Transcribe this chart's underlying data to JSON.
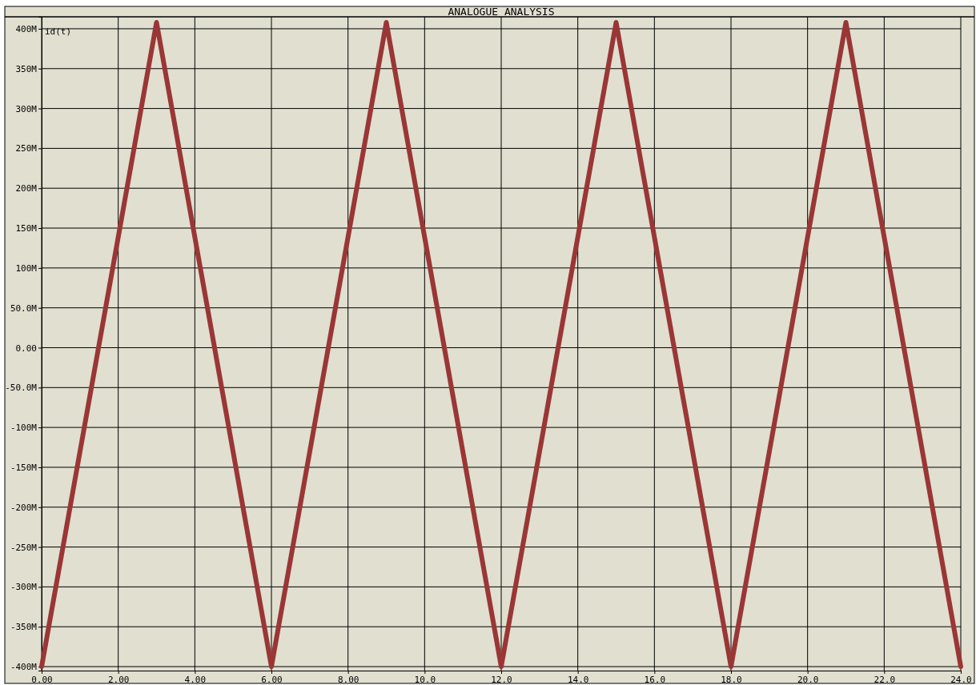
{
  "chart_data": {
    "type": "line",
    "title": "ANALOGUE ANALYSIS",
    "x": [
      0,
      3,
      6,
      9,
      12,
      15,
      18,
      21,
      24
    ],
    "series": [
      {
        "name": "id(t)",
        "color": "#9a3636",
        "values": [
          -400,
          408,
          -400,
          408,
          -400,
          408,
          -400,
          408,
          -400
        ]
      }
    ],
    "xlim": [
      0,
      24
    ],
    "xticks": [
      {
        "value": 0,
        "label": "0.00"
      },
      {
        "value": 2,
        "label": "2.00"
      },
      {
        "value": 4,
        "label": "4.00"
      },
      {
        "value": 6,
        "label": "6.00"
      },
      {
        "value": 8,
        "label": "8.00"
      },
      {
        "value": 10,
        "label": "10.0"
      },
      {
        "value": 12,
        "label": "12.0"
      },
      {
        "value": 14,
        "label": "14.0"
      },
      {
        "value": 16,
        "label": "16.0"
      },
      {
        "value": 18,
        "label": "18.0"
      },
      {
        "value": 20,
        "label": "20.0"
      },
      {
        "value": 22,
        "label": "22.0"
      },
      {
        "value": 24,
        "label": "24.0"
      }
    ],
    "ylim": [
      -405,
      415
    ],
    "yticks": [
      {
        "value": -400,
        "label": "-400M"
      },
      {
        "value": -350,
        "label": "-350M"
      },
      {
        "value": -300,
        "label": "-300M"
      },
      {
        "value": -250,
        "label": "-250M"
      },
      {
        "value": -200,
        "label": "-200M"
      },
      {
        "value": -150,
        "label": "-150M"
      },
      {
        "value": -100,
        "label": "-100M"
      },
      {
        "value": -50,
        "label": "-50.0M"
      },
      {
        "value": 0,
        "label": "0.00"
      },
      {
        "value": 50,
        "label": "50.0M"
      },
      {
        "value": 100,
        "label": "100M"
      },
      {
        "value": 150,
        "label": "150M"
      },
      {
        "value": 200,
        "label": "200M"
      },
      {
        "value": 250,
        "label": "250M"
      },
      {
        "value": 300,
        "label": "300M"
      },
      {
        "value": 350,
        "label": "350M"
      },
      {
        "value": 400,
        "label": "400M"
      }
    ],
    "grid": true,
    "legend": "top left",
    "marker": "none",
    "line_style": "solid"
  }
}
